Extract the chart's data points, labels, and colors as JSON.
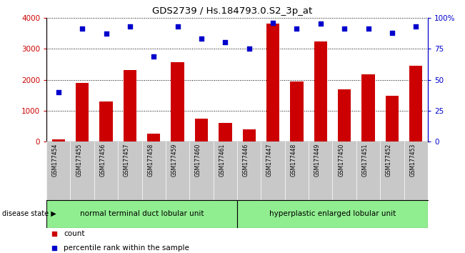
{
  "title": "GDS2739 / Hs.184793.0.S2_3p_at",
  "samples": [
    "GSM177454",
    "GSM177455",
    "GSM177456",
    "GSM177457",
    "GSM177458",
    "GSM177459",
    "GSM177460",
    "GSM177461",
    "GSM177446",
    "GSM177447",
    "GSM177448",
    "GSM177449",
    "GSM177450",
    "GSM177451",
    "GSM177452",
    "GSM177453"
  ],
  "counts": [
    80,
    1900,
    1300,
    2320,
    270,
    2560,
    750,
    600,
    400,
    3820,
    1950,
    3230,
    1680,
    2180,
    1480,
    2450
  ],
  "percentiles": [
    40,
    91,
    87,
    93,
    69,
    93,
    83,
    80,
    75,
    96,
    91,
    95,
    91,
    91,
    88,
    93
  ],
  "group1_label": "normal terminal duct lobular unit",
  "group2_label": "hyperplastic enlarged lobular unit",
  "group1_count": 8,
  "group2_count": 8,
  "bar_color": "#cc0000",
  "dot_color": "#0000cc",
  "ylim_left": [
    0,
    4000
  ],
  "ylim_right": [
    0,
    100
  ],
  "yticks_left": [
    0,
    1000,
    2000,
    3000,
    4000
  ],
  "yticks_right": [
    0,
    25,
    50,
    75,
    100
  ],
  "ytick_labels_right": [
    "0",
    "25",
    "50",
    "75",
    "100%"
  ],
  "bg_color": "#ffffff",
  "plot_bg": "#ffffff",
  "legend_count_label": "count",
  "legend_pct_label": "percentile rank within the sample",
  "disease_state_label": "disease state",
  "group1_bg": "#90ee90",
  "group2_bg": "#90ee90",
  "sample_label_bg": "#c8c8c8",
  "bar_width": 0.55
}
